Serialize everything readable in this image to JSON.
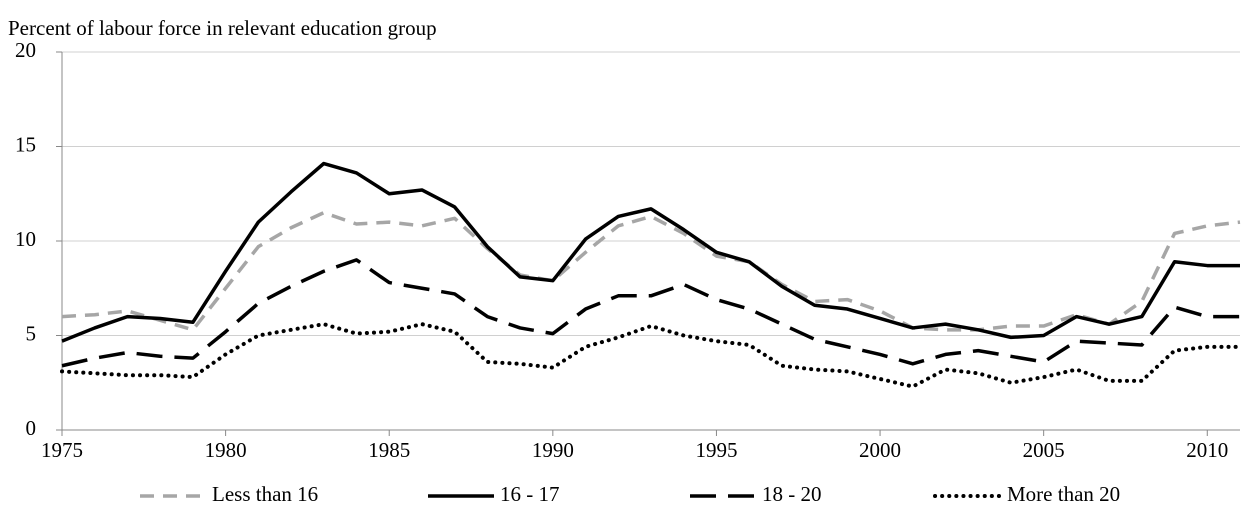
{
  "chart_data": {
    "type": "line",
    "y_label": "Percent of labour force in relevant education group",
    "x": [
      1975,
      1976,
      1977,
      1978,
      1979,
      1980,
      1981,
      1982,
      1983,
      1984,
      1985,
      1986,
      1987,
      1988,
      1989,
      1990,
      1991,
      1992,
      1993,
      1994,
      1995,
      1996,
      1997,
      1998,
      1999,
      2000,
      2001,
      2002,
      2003,
      2004,
      2005,
      2006,
      2007,
      2008,
      2009,
      2010,
      2011
    ],
    "series": [
      {
        "name": "Less than 16",
        "color": "#a6a6a6",
        "dash": "dashed",
        "values": [
          6.0,
          6.1,
          6.3,
          5.8,
          5.3,
          7.5,
          9.7,
          10.7,
          11.5,
          10.9,
          11.0,
          10.8,
          11.2,
          9.6,
          8.2,
          7.9,
          9.4,
          10.8,
          11.3,
          10.4,
          9.2,
          8.9,
          7.7,
          6.8,
          6.9,
          6.3,
          5.4,
          5.3,
          5.3,
          5.5,
          5.5,
          6.1,
          5.6,
          6.8,
          10.4,
          10.8,
          11.0
        ]
      },
      {
        "name": "16 - 17",
        "color": "#000000",
        "dash": "solid",
        "values": [
          4.7,
          5.4,
          6.0,
          5.9,
          5.7,
          8.4,
          11.0,
          12.6,
          14.1,
          13.6,
          12.5,
          12.7,
          11.8,
          9.7,
          8.1,
          7.9,
          10.1,
          11.3,
          11.7,
          10.6,
          9.4,
          8.9,
          7.6,
          6.6,
          6.4,
          5.9,
          5.4,
          5.6,
          5.3,
          4.9,
          5.0,
          6.0,
          5.6,
          6.0,
          8.9,
          8.7,
          8.7
        ]
      },
      {
        "name": "18 - 20",
        "color": "#000000",
        "dash": "long-dash",
        "values": [
          3.4,
          3.8,
          4.1,
          3.9,
          3.8,
          5.2,
          6.7,
          7.6,
          8.4,
          9.0,
          7.8,
          7.5,
          7.2,
          6.0,
          5.4,
          5.1,
          6.4,
          7.1,
          7.1,
          7.7,
          6.9,
          6.4,
          5.6,
          4.8,
          4.4,
          4.0,
          3.5,
          4.0,
          4.2,
          3.9,
          3.6,
          4.7,
          4.6,
          4.5,
          6.5,
          6.0,
          6.0
        ]
      },
      {
        "name": "More than 20",
        "color": "#000000",
        "dash": "dotted",
        "values": [
          3.1,
          3.0,
          2.9,
          2.9,
          2.8,
          4.0,
          5.0,
          5.3,
          5.6,
          5.1,
          5.2,
          5.6,
          5.2,
          3.6,
          3.5,
          3.3,
          4.4,
          4.9,
          5.5,
          5.0,
          4.7,
          4.5,
          3.4,
          3.2,
          3.1,
          2.7,
          2.3,
          3.2,
          3.0,
          2.5,
          2.8,
          3.2,
          2.6,
          2.6,
          4.2,
          4.4,
          4.4
        ]
      }
    ],
    "xlim": [
      1975,
      2011
    ],
    "xticks": [
      1975,
      1980,
      1985,
      1990,
      1995,
      2000,
      2005,
      2010
    ],
    "ylim": [
      0,
      20
    ],
    "yticks": [
      0,
      5,
      10,
      15,
      20
    ],
    "grid": true,
    "legend": "bottom"
  }
}
